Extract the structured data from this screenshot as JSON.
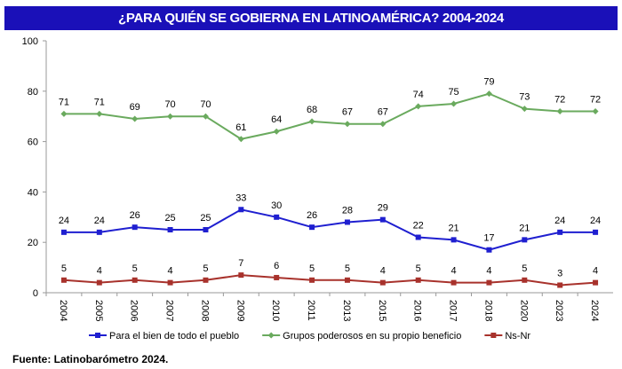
{
  "chart_data": {
    "type": "line",
    "title": "¿PARA QUIÉN SE GOBIERNA EN LATINOAMÉRICA? 2004-2024",
    "categories": [
      "2004",
      "2005",
      "2006",
      "2007",
      "2008",
      "2009",
      "2010",
      "2011",
      "2013",
      "2015",
      "2016",
      "2017",
      "2018",
      "2020",
      "2023",
      "2024"
    ],
    "ylim": [
      0,
      100
    ],
    "yticks": [
      0,
      20,
      40,
      60,
      80,
      100
    ],
    "grid": false,
    "legend": "bottom",
    "series": [
      {
        "name": "Para el bien de todo el pueblo",
        "color": "#1f1fd0",
        "marker": "square",
        "values": [
          24,
          24,
          26,
          25,
          25,
          33,
          30,
          26,
          28,
          29,
          22,
          21,
          17,
          21,
          24,
          24
        ]
      },
      {
        "name": "Grupos poderosos en su propio beneficio",
        "color": "#6aaa5e",
        "marker": "diamond",
        "values": [
          71,
          71,
          69,
          70,
          70,
          61,
          64,
          68,
          67,
          67,
          74,
          75,
          79,
          73,
          72,
          72
        ]
      },
      {
        "name": "Ns-Nr",
        "color": "#a8322c",
        "marker": "square",
        "values": [
          5,
          4,
          5,
          4,
          5,
          7,
          6,
          5,
          5,
          4,
          5,
          4,
          4,
          5,
          3,
          4
        ]
      }
    ]
  },
  "footer": "Fuente: Latinobarómetro 2024."
}
